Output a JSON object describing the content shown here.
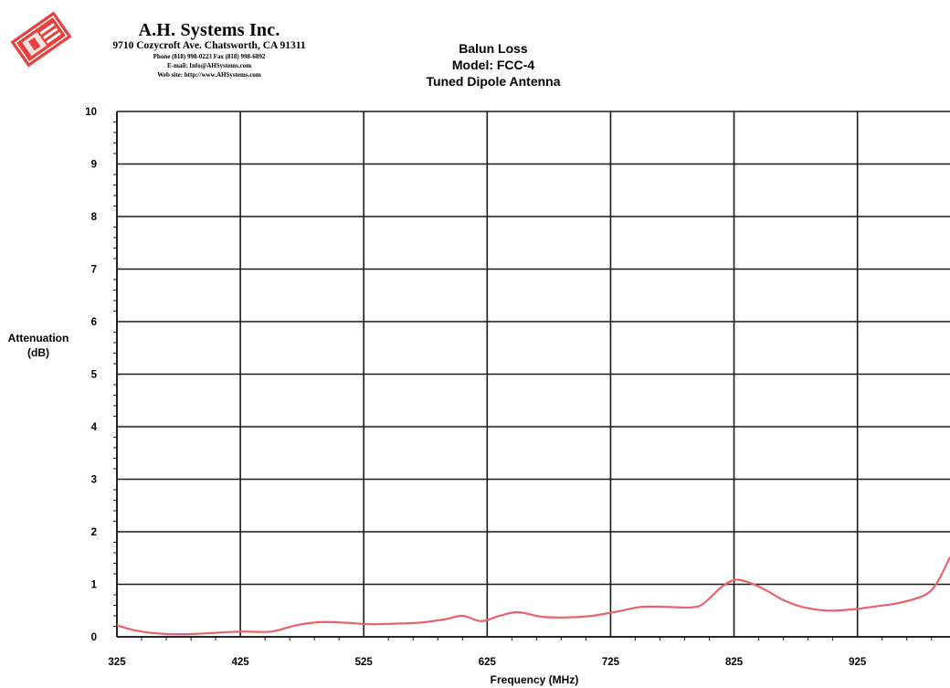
{
  "header": {
    "company_name": "A.H. Systems Inc.",
    "address": "9710 Cozycroft Ave. Chatsworth, CA 91311",
    "phone_fax": "Phone (818) 998-0223 Fax (818) 998-6892",
    "email": "E-mail: Info@AHSystems.com",
    "website": "Web site: http://www.AHSystems.com"
  },
  "colors": {
    "series": "#e8636b",
    "grid": "#1a1a1a",
    "logo": "#e8403f"
  },
  "chart_data": {
    "type": "line",
    "title_lines": [
      "Balun Loss",
      "Model: FCC-4",
      "Tuned Dipole Antenna"
    ],
    "xlabel": "Frequency (MHz)",
    "ylabel_lines": [
      "Attenuation",
      "(dB)"
    ],
    "xlim": [
      325,
      1000
    ],
    "ylim": [
      0,
      10
    ],
    "x_ticks": [
      325,
      425,
      525,
      625,
      725,
      825,
      925
    ],
    "y_ticks": [
      0,
      1,
      2,
      3,
      4,
      5,
      6,
      7,
      8,
      9,
      10
    ],
    "grid": true,
    "series": [
      {
        "x": [
          325,
          340,
          360,
          380,
          400,
          425,
          450,
          470,
          490,
          510,
          530,
          550,
          570,
          590,
          605,
          620,
          635,
          650,
          670,
          690,
          710,
          730,
          750,
          770,
          790,
          800,
          815,
          825,
          835,
          850,
          865,
          880,
          900,
          920,
          940,
          960,
          980,
          990,
          1000
        ],
        "y": [
          0.22,
          0.12,
          0.06,
          0.05,
          0.07,
          0.1,
          0.1,
          0.22,
          0.28,
          0.27,
          0.24,
          0.25,
          0.27,
          0.33,
          0.4,
          0.3,
          0.4,
          0.47,
          0.38,
          0.37,
          0.4,
          0.48,
          0.57,
          0.57,
          0.56,
          0.63,
          0.95,
          1.08,
          1.05,
          0.9,
          0.7,
          0.57,
          0.5,
          0.52,
          0.58,
          0.65,
          0.8,
          1.05,
          1.52
        ]
      }
    ]
  }
}
